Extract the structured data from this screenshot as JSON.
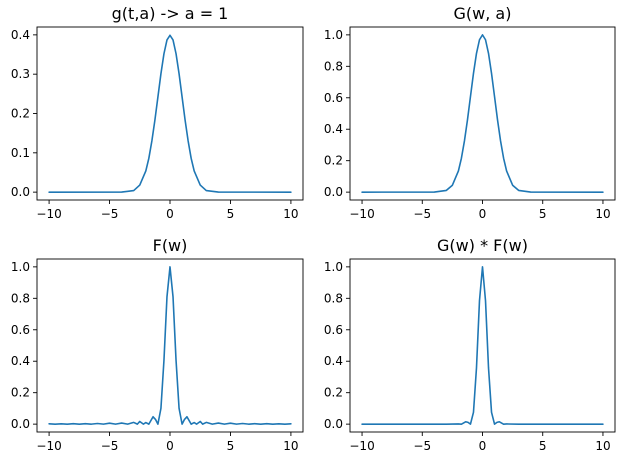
{
  "chart_data": [
    {
      "type": "line",
      "title": "g(t,a) -> a = 1",
      "xlabel": "",
      "ylabel": "",
      "xlim": [
        -11,
        11
      ],
      "ylim": [
        -0.02,
        0.42
      ],
      "xticks": [
        -10,
        -5,
        0,
        5,
        10
      ],
      "xtick_labels": [
        "−10",
        "−5",
        "0",
        "5",
        "10"
      ],
      "yticks": [
        0.0,
        0.1,
        0.2,
        0.3,
        0.4
      ],
      "ytick_labels": [
        "0.0",
        "0.1",
        "0.2",
        "0.3",
        "0.4"
      ],
      "grid": false,
      "series": [
        {
          "color": "#1f77b4",
          "x": [
            -10,
            -4,
            -3,
            -2.5,
            -2,
            -1.75,
            -1.5,
            -1.25,
            -1,
            -0.75,
            -0.5,
            -0.25,
            0,
            0.25,
            0.5,
            0.75,
            1,
            1.25,
            1.5,
            1.75,
            2,
            2.5,
            3,
            4,
            10
          ],
          "y": [
            0.0,
            0.0001,
            0.004,
            0.018,
            0.054,
            0.086,
            0.13,
            0.183,
            0.242,
            0.301,
            0.352,
            0.387,
            0.399,
            0.387,
            0.352,
            0.301,
            0.242,
            0.183,
            0.13,
            0.086,
            0.054,
            0.018,
            0.004,
            0.0001,
            0.0
          ]
        }
      ]
    },
    {
      "type": "line",
      "title": "G(w, a)",
      "xlabel": "",
      "ylabel": "",
      "xlim": [
        -11,
        11
      ],
      "ylim": [
        -0.05,
        1.05
      ],
      "xticks": [
        -10,
        -5,
        0,
        5,
        10
      ],
      "xtick_labels": [
        "−10",
        "−5",
        "0",
        "5",
        "10"
      ],
      "yticks": [
        0.0,
        0.2,
        0.4,
        0.6,
        0.8,
        1.0
      ],
      "ytick_labels": [
        "0.0",
        "0.2",
        "0.4",
        "0.6",
        "0.8",
        "1.0"
      ],
      "grid": false,
      "series": [
        {
          "color": "#1f77b4",
          "x": [
            -10,
            -4,
            -3,
            -2.5,
            -2,
            -1.75,
            -1.5,
            -1.25,
            -1,
            -0.75,
            -0.5,
            -0.25,
            0,
            0.25,
            0.5,
            0.75,
            1,
            1.25,
            1.5,
            1.75,
            2,
            2.5,
            3,
            4,
            10
          ],
          "y": [
            0.0,
            0.0003,
            0.011,
            0.044,
            0.135,
            0.216,
            0.325,
            0.458,
            0.607,
            0.755,
            0.882,
            0.969,
            1.0,
            0.969,
            0.882,
            0.755,
            0.607,
            0.458,
            0.325,
            0.216,
            0.135,
            0.044,
            0.011,
            0.0003,
            0.0
          ]
        }
      ]
    },
    {
      "type": "line",
      "title": "F(w)",
      "xlabel": "",
      "ylabel": "",
      "xlim": [
        -11,
        11
      ],
      "ylim": [
        -0.05,
        1.05
      ],
      "xticks": [
        -10,
        -5,
        0,
        5,
        10
      ],
      "xtick_labels": [
        "−10",
        "−5",
        "0",
        "5",
        "10"
      ],
      "yticks": [
        0.0,
        0.2,
        0.4,
        0.6,
        0.8,
        1.0
      ],
      "ytick_labels": [
        "0.0",
        "0.2",
        "0.4",
        "0.6",
        "0.8",
        "1.0"
      ],
      "grid": false,
      "series": [
        {
          "color": "#1f77b4",
          "x": [
            -10,
            -9.5,
            -9,
            -8.5,
            -8,
            -7.5,
            -7,
            -6.5,
            -6,
            -5.5,
            -5,
            -4.5,
            -4,
            -3.5,
            -3,
            -2.7,
            -2.5,
            -2.2,
            -2,
            -1.75,
            -1.4,
            -1.2,
            -1,
            -0.75,
            -0.5,
            -0.25,
            0,
            0.25,
            0.5,
            0.75,
            1,
            1.2,
            1.4,
            1.75,
            2,
            2.2,
            2.5,
            2.7,
            3,
            3.5,
            4,
            4.5,
            5,
            5.5,
            6,
            6.5,
            7,
            7.5,
            8,
            8.5,
            9,
            9.5,
            10
          ],
          "y": [
            0.002,
            0.0,
            0.002,
            0.0,
            0.003,
            0.0,
            0.003,
            0.0,
            0.004,
            0.0,
            0.006,
            0.0,
            0.007,
            0.0,
            0.011,
            0.0,
            0.017,
            0.0,
            0.01,
            0.0,
            0.047,
            0.03,
            0.0,
            0.1,
            0.405,
            0.81,
            1.0,
            0.81,
            0.405,
            0.1,
            0.0,
            0.03,
            0.047,
            0.0,
            0.01,
            0.0,
            0.017,
            0.0,
            0.011,
            0.0,
            0.007,
            0.0,
            0.006,
            0.0,
            0.004,
            0.0,
            0.003,
            0.0,
            0.003,
            0.0,
            0.002,
            0.0,
            0.002
          ]
        }
      ]
    },
    {
      "type": "line",
      "title": "G(w) * F(w)",
      "xlabel": "",
      "ylabel": "",
      "xlim": [
        -11,
        11
      ],
      "ylim": [
        -0.05,
        1.05
      ],
      "xticks": [
        -10,
        -5,
        0,
        5,
        10
      ],
      "xtick_labels": [
        "−10",
        "−5",
        "0",
        "5",
        "10"
      ],
      "yticks": [
        0.0,
        0.2,
        0.4,
        0.6,
        0.8,
        1.0
      ],
      "ytick_labels": [
        "0.0",
        "0.2",
        "0.4",
        "0.6",
        "0.8",
        "1.0"
      ],
      "grid": false,
      "series": [
        {
          "color": "#1f77b4",
          "x": [
            -10,
            -3,
            -2,
            -1.75,
            -1.4,
            -1.2,
            -1,
            -0.75,
            -0.5,
            -0.25,
            0,
            0.25,
            0.5,
            0.75,
            1,
            1.2,
            1.4,
            1.75,
            2,
            3,
            10
          ],
          "y": [
            0.0,
            0.0,
            0.001,
            0.0,
            0.015,
            0.011,
            0.0,
            0.075,
            0.357,
            0.785,
            1.0,
            0.785,
            0.357,
            0.075,
            0.0,
            0.011,
            0.015,
            0.0,
            0.001,
            0.0,
            0.0
          ]
        }
      ]
    }
  ]
}
